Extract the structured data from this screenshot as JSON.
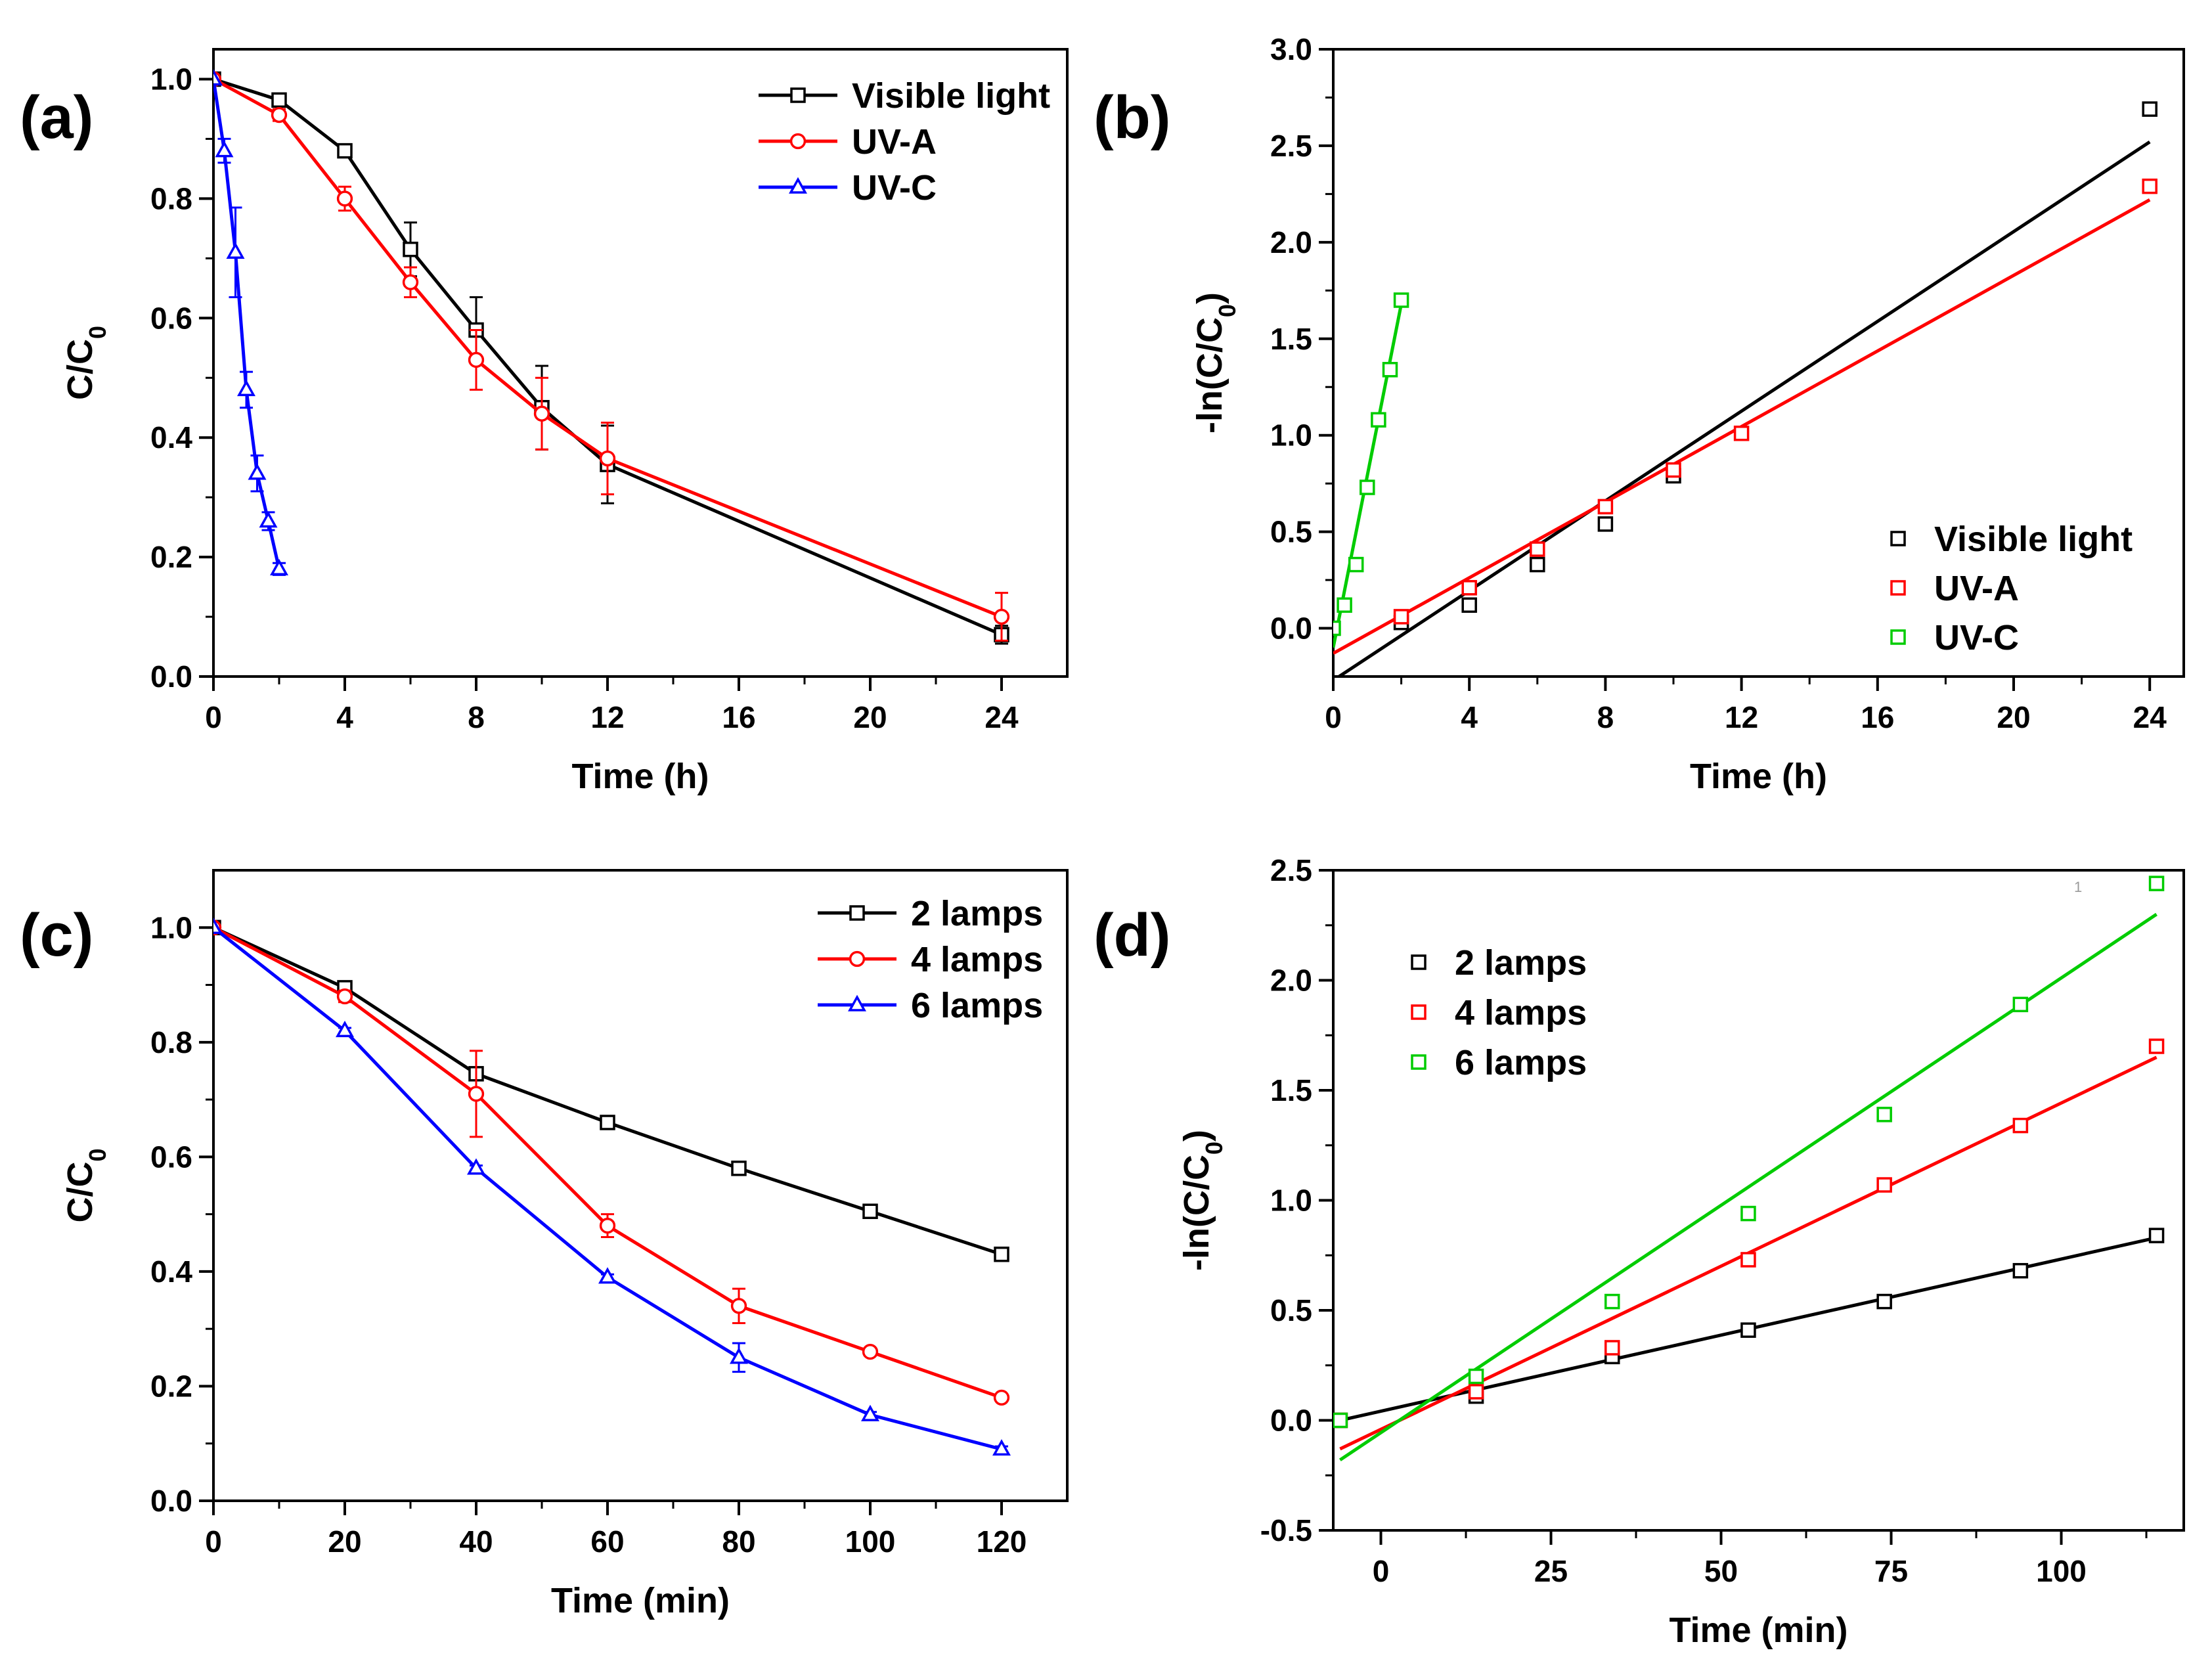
{
  "figure": {
    "stray_mark": "1"
  },
  "chart_data": [
    {
      "id": "a",
      "type": "line",
      "panel_label": "(a)",
      "xlabel": "Time (h)",
      "ylabel": "C/C0",
      "ylabel_main": "C/C",
      "ylabel_sub": "0",
      "xlim": [
        0,
        26
      ],
      "ylim": [
        0,
        1.05
      ],
      "xticks": [
        0,
        4,
        8,
        12,
        16,
        20,
        24
      ],
      "yticks": [
        0.0,
        0.2,
        0.4,
        0.6,
        0.8,
        1.0
      ],
      "ytick_labels": [
        "0.0",
        "0.2",
        "0.4",
        "0.6",
        "0.8",
        "1.0"
      ],
      "legend_position": "top-right",
      "series": [
        {
          "name": "Visible light",
          "color": "#000000",
          "marker": "square",
          "line": "connect",
          "x": [
            0,
            2,
            4,
            6,
            8,
            10,
            12,
            24
          ],
          "y": [
            1.0,
            0.965,
            0.88,
            0.715,
            0.58,
            0.45,
            0.355,
            0.07
          ],
          "err": [
            0.0,
            0.01,
            0.01,
            0.045,
            0.055,
            0.07,
            0.065,
            0.015
          ]
        },
        {
          "name": "UV-A",
          "color": "#ff0000",
          "marker": "circle",
          "line": "connect",
          "x": [
            0,
            2,
            4,
            6,
            8,
            10,
            12,
            24
          ],
          "y": [
            1.0,
            0.94,
            0.8,
            0.66,
            0.53,
            0.44,
            0.365,
            0.1
          ],
          "err": [
            0.0,
            0.01,
            0.02,
            0.025,
            0.05,
            0.06,
            0.06,
            0.04
          ]
        },
        {
          "name": "UV-C",
          "color": "#0000ff",
          "marker": "triangle",
          "line": "connect",
          "x": [
            0,
            0.33,
            0.67,
            1.0,
            1.33,
            1.67,
            2.0
          ],
          "y": [
            1.0,
            0.88,
            0.71,
            0.48,
            0.34,
            0.26,
            0.18
          ],
          "err": [
            0.0,
            0.02,
            0.075,
            0.03,
            0.03,
            0.015,
            0.01
          ]
        }
      ]
    },
    {
      "id": "b",
      "type": "scatter",
      "panel_label": "(b)",
      "xlabel": "Time (h)",
      "ylabel": "-ln(C/C0)",
      "ylabel_main": "-ln(C/C",
      "ylabel_sub": "0",
      "ylabel_tail": ")",
      "xlim": [
        0,
        25
      ],
      "ylim": [
        -0.25,
        3.0
      ],
      "xticks": [
        0,
        4,
        8,
        12,
        16,
        20,
        24
      ],
      "yticks": [
        0.0,
        0.5,
        1.0,
        1.5,
        2.0,
        2.5,
        3.0
      ],
      "ytick_labels": [
        "0.0",
        "0.5",
        "1.0",
        "1.5",
        "2.0",
        "2.5",
        "3.0"
      ],
      "legend_position": "bottom-right",
      "series": [
        {
          "name": "Visible light",
          "color": "#000000",
          "marker": "square",
          "line": "fit",
          "x": [
            2,
            4,
            6,
            8,
            10,
            24
          ],
          "y": [
            0.03,
            0.12,
            0.33,
            0.54,
            0.79,
            2.69
          ],
          "fit": [
            [
              0,
              -0.27
            ],
            [
              24,
              2.52
            ]
          ]
        },
        {
          "name": "UV-A",
          "color": "#ff0000",
          "marker": "square",
          "line": "fit",
          "x": [
            2,
            4,
            6,
            8,
            10,
            12,
            24
          ],
          "y": [
            0.06,
            0.21,
            0.41,
            0.63,
            0.82,
            1.01,
            2.29
          ],
          "fit": [
            [
              0,
              -0.13
            ],
            [
              24,
              2.22
            ]
          ]
        },
        {
          "name": "UV-C",
          "color": "#00cc00",
          "marker": "square",
          "line": "fit",
          "x": [
            0,
            0.33,
            0.67,
            1.0,
            1.33,
            1.67,
            2.0
          ],
          "y": [
            0.0,
            0.12,
            0.33,
            0.73,
            1.08,
            1.34,
            1.7
          ],
          "fit": [
            [
              0,
              -0.1
            ],
            [
              2.0,
              1.68
            ]
          ]
        }
      ]
    },
    {
      "id": "c",
      "type": "line",
      "panel_label": "(c)",
      "xlabel": "Time (min)",
      "ylabel": "C/C0",
      "ylabel_main": "C/C",
      "ylabel_sub": "0",
      "xlim": [
        0,
        130
      ],
      "ylim": [
        0,
        1.1
      ],
      "xticks": [
        0,
        20,
        40,
        60,
        80,
        100,
        120
      ],
      "yticks": [
        0.0,
        0.2,
        0.4,
        0.6,
        0.8,
        1.0
      ],
      "ytick_labels": [
        "0.0",
        "0.2",
        "0.4",
        "0.6",
        "0.8",
        "1.0"
      ],
      "legend_position": "top-right",
      "series": [
        {
          "name": "2 lamps",
          "color": "#000000",
          "marker": "square",
          "line": "connect",
          "x": [
            0,
            20,
            40,
            60,
            80,
            100,
            120
          ],
          "y": [
            1.0,
            0.895,
            0.745,
            0.66,
            0.58,
            0.505,
            0.43
          ],
          "err": [
            0.0,
            0.008,
            0.008,
            0.006,
            0.006,
            0.005,
            0.005
          ]
        },
        {
          "name": "4 lamps",
          "color": "#ff0000",
          "marker": "circle",
          "line": "connect",
          "x": [
            0,
            20,
            40,
            60,
            80,
            100,
            120
          ],
          "y": [
            1.0,
            0.88,
            0.71,
            0.48,
            0.34,
            0.26,
            0.18
          ],
          "err": [
            0.0,
            0.01,
            0.075,
            0.02,
            0.03,
            0.005,
            0.005
          ]
        },
        {
          "name": "6 lamps",
          "color": "#0000ff",
          "marker": "triangle",
          "line": "connect",
          "x": [
            0,
            20,
            40,
            60,
            80,
            100,
            120
          ],
          "y": [
            1.0,
            0.82,
            0.58,
            0.39,
            0.25,
            0.15,
            0.09
          ],
          "err": [
            0.0,
            0.005,
            0.005,
            0.005,
            0.025,
            0.005,
            0.005
          ]
        }
      ]
    },
    {
      "id": "d",
      "type": "scatter",
      "panel_label": "(d)",
      "xlabel": "Time (min)",
      "ylabel": "-ln(C/C0)",
      "ylabel_main": "-ln(C/C",
      "ylabel_sub": "0",
      "ylabel_tail": ")",
      "xlim": [
        -7,
        118
      ],
      "ylim": [
        -0.5,
        2.5
      ],
      "xticks": [
        0,
        25,
        50,
        75,
        100
      ],
      "yticks": [
        -0.5,
        0.0,
        0.5,
        1.0,
        1.5,
        2.0,
        2.5
      ],
      "ytick_labels": [
        "-0.5",
        "0.0",
        "0.5",
        "1.0",
        "1.5",
        "2.0",
        "2.5"
      ],
      "legend_position": "top-left",
      "series": [
        {
          "name": "2 lamps",
          "color": "#000000",
          "marker": "square",
          "line": "fit",
          "x": [
            -6,
            14,
            34,
            54,
            74,
            94,
            114
          ],
          "y": [
            0.0,
            0.11,
            0.29,
            0.41,
            0.54,
            0.68,
            0.84
          ],
          "fit": [
            [
              -6,
              0.0
            ],
            [
              114,
              0.83
            ]
          ]
        },
        {
          "name": "4 lamps",
          "color": "#ff0000",
          "marker": "square",
          "line": "fit",
          "x": [
            -6,
            14,
            34,
            54,
            74,
            94,
            114
          ],
          "y": [
            0.0,
            0.13,
            0.33,
            0.73,
            1.07,
            1.34,
            1.7
          ],
          "fit": [
            [
              -6,
              -0.13
            ],
            [
              114,
              1.65
            ]
          ]
        },
        {
          "name": "6 lamps",
          "color": "#00cc00",
          "marker": "square",
          "line": "fit",
          "x": [
            -6,
            14,
            34,
            54,
            74,
            94,
            114
          ],
          "y": [
            0.0,
            0.2,
            0.54,
            0.94,
            1.39,
            1.89,
            2.44
          ],
          "fit": [
            [
              -6,
              -0.18
            ],
            [
              114,
              2.3
            ]
          ]
        }
      ]
    }
  ]
}
